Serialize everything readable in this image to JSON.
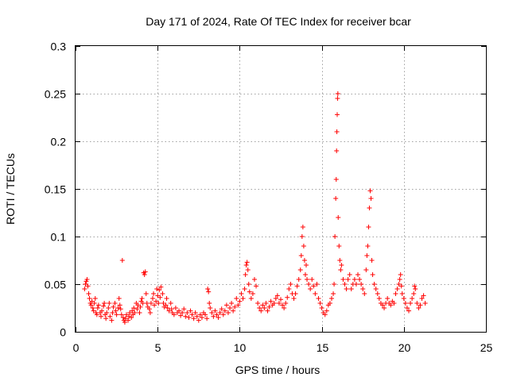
{
  "chart_data": {
    "type": "scatter",
    "title": "Day 171 of 2024, Rate Of TEC Index for receiver bcar",
    "xlabel": "GPS time / hours",
    "ylabel": "ROTI / TECUs",
    "xlim": [
      0,
      25
    ],
    "ylim": [
      0,
      0.3
    ],
    "xticks": [
      0,
      5,
      10,
      15,
      20,
      25
    ],
    "yticks": [
      0,
      0.05,
      0.1,
      0.15,
      0.2,
      0.25,
      0.3
    ],
    "xtick_labels": [
      "0",
      "5",
      "10",
      "15",
      "20",
      "25"
    ],
    "ytick_labels": [
      "0",
      "0.05",
      "0.1",
      "0.15",
      "0.2",
      "0.25",
      "0.3"
    ],
    "grid": true,
    "marker": "+",
    "series": [
      {
        "name": "ROTI",
        "color": "#ff0000",
        "points": [
          [
            0.55,
            0.045
          ],
          [
            0.6,
            0.05
          ],
          [
            0.65,
            0.053
          ],
          [
            0.7,
            0.055
          ],
          [
            0.75,
            0.048
          ],
          [
            0.8,
            0.04
          ],
          [
            0.85,
            0.035
          ],
          [
            0.9,
            0.03
          ],
          [
            0.95,
            0.028
          ],
          [
            1.0,
            0.032
          ],
          [
            1.05,
            0.025
          ],
          [
            1.1,
            0.022
          ],
          [
            1.15,
            0.03
          ],
          [
            1.2,
            0.035
          ],
          [
            1.25,
            0.02
          ],
          [
            1.3,
            0.018
          ],
          [
            1.35,
            0.025
          ],
          [
            1.4,
            0.028
          ],
          [
            1.5,
            0.02
          ],
          [
            1.55,
            0.016
          ],
          [
            1.6,
            0.022
          ],
          [
            1.7,
            0.027
          ],
          [
            1.75,
            0.03
          ],
          [
            1.8,
            0.018
          ],
          [
            1.85,
            0.014
          ],
          [
            1.9,
            0.02
          ],
          [
            2.0,
            0.025
          ],
          [
            2.05,
            0.03
          ],
          [
            2.1,
            0.016
          ],
          [
            2.2,
            0.012
          ],
          [
            2.25,
            0.02
          ],
          [
            2.3,
            0.026
          ],
          [
            2.4,
            0.03
          ],
          [
            2.45,
            0.022
          ],
          [
            2.5,
            0.018
          ],
          [
            2.6,
            0.025
          ],
          [
            2.65,
            0.035
          ],
          [
            2.7,
            0.028
          ],
          [
            2.75,
            0.024
          ],
          [
            2.8,
            0.018
          ],
          [
            2.85,
            0.075
          ],
          [
            2.9,
            0.015
          ],
          [
            2.95,
            0.012
          ],
          [
            3.0,
            0.01
          ],
          [
            3.05,
            0.014
          ],
          [
            3.1,
            0.018
          ],
          [
            3.2,
            0.012
          ],
          [
            3.25,
            0.016
          ],
          [
            3.3,
            0.02
          ],
          [
            3.4,
            0.015
          ],
          [
            3.45,
            0.022
          ],
          [
            3.5,
            0.018
          ],
          [
            3.55,
            0.025
          ],
          [
            3.6,
            0.02
          ],
          [
            3.7,
            0.03
          ],
          [
            3.75,
            0.024
          ],
          [
            3.8,
            0.028
          ],
          [
            3.9,
            0.02
          ],
          [
            3.95,
            0.026
          ],
          [
            4.0,
            0.032
          ],
          [
            4.05,
            0.035
          ],
          [
            4.1,
            0.03
          ],
          [
            4.15,
            0.062
          ],
          [
            4.2,
            0.06
          ],
          [
            4.25,
            0.063
          ],
          [
            4.3,
            0.04
          ],
          [
            4.35,
            0.03
          ],
          [
            4.4,
            0.026
          ],
          [
            4.5,
            0.024
          ],
          [
            4.55,
            0.02
          ],
          [
            4.6,
            0.03
          ],
          [
            4.7,
            0.035
          ],
          [
            4.75,
            0.04
          ],
          [
            4.8,
            0.028
          ],
          [
            4.9,
            0.032
          ],
          [
            4.95,
            0.045
          ],
          [
            5.0,
            0.038
          ],
          [
            5.05,
            0.03
          ],
          [
            5.1,
            0.044
          ],
          [
            5.15,
            0.036
          ],
          [
            5.2,
            0.047
          ],
          [
            5.3,
            0.04
          ],
          [
            5.35,
            0.03
          ],
          [
            5.4,
            0.026
          ],
          [
            5.5,
            0.028
          ],
          [
            5.55,
            0.035
          ],
          [
            5.6,
            0.025
          ],
          [
            5.7,
            0.022
          ],
          [
            5.8,
            0.03
          ],
          [
            5.85,
            0.024
          ],
          [
            5.9,
            0.02
          ],
          [
            6.0,
            0.018
          ],
          [
            6.1,
            0.025
          ],
          [
            6.2,
            0.02
          ],
          [
            6.3,
            0.022
          ],
          [
            6.4,
            0.017
          ],
          [
            6.5,
            0.02
          ],
          [
            6.6,
            0.024
          ],
          [
            6.7,
            0.016
          ],
          [
            6.8,
            0.02
          ],
          [
            6.9,
            0.015
          ],
          [
            7.0,
            0.022
          ],
          [
            7.1,
            0.018
          ],
          [
            7.2,
            0.014
          ],
          [
            7.3,
            0.02
          ],
          [
            7.4,
            0.016
          ],
          [
            7.5,
            0.012
          ],
          [
            7.6,
            0.018
          ],
          [
            7.7,
            0.015
          ],
          [
            7.8,
            0.02
          ],
          [
            7.9,
            0.018
          ],
          [
            8.0,
            0.014
          ],
          [
            8.05,
            0.045
          ],
          [
            8.1,
            0.042
          ],
          [
            8.15,
            0.03
          ],
          [
            8.2,
            0.025
          ],
          [
            8.3,
            0.02
          ],
          [
            8.4,
            0.016
          ],
          [
            8.5,
            0.022
          ],
          [
            8.6,
            0.018
          ],
          [
            8.7,
            0.015
          ],
          [
            8.8,
            0.02
          ],
          [
            8.9,
            0.024
          ],
          [
            9.0,
            0.018
          ],
          [
            9.1,
            0.022
          ],
          [
            9.2,
            0.028
          ],
          [
            9.3,
            0.02
          ],
          [
            9.4,
            0.025
          ],
          [
            9.5,
            0.03
          ],
          [
            9.6,
            0.022
          ],
          [
            9.7,
            0.026
          ],
          [
            9.8,
            0.035
          ],
          [
            9.9,
            0.028
          ],
          [
            10.0,
            0.032
          ],
          [
            10.1,
            0.04
          ],
          [
            10.2,
            0.035
          ],
          [
            10.3,
            0.045
          ],
          [
            10.35,
            0.06
          ],
          [
            10.4,
            0.07
          ],
          [
            10.45,
            0.073
          ],
          [
            10.5,
            0.065
          ],
          [
            10.55,
            0.05
          ],
          [
            10.6,
            0.042
          ],
          [
            10.7,
            0.035
          ],
          [
            10.8,
            0.04
          ],
          [
            10.9,
            0.055
          ],
          [
            11.0,
            0.048
          ],
          [
            11.1,
            0.03
          ],
          [
            11.2,
            0.025
          ],
          [
            11.3,
            0.022
          ],
          [
            11.4,
            0.028
          ],
          [
            11.5,
            0.025
          ],
          [
            11.6,
            0.03
          ],
          [
            11.7,
            0.022
          ],
          [
            11.8,
            0.026
          ],
          [
            11.9,
            0.032
          ],
          [
            12.0,
            0.028
          ],
          [
            12.1,
            0.03
          ],
          [
            12.2,
            0.035
          ],
          [
            12.3,
            0.038
          ],
          [
            12.4,
            0.03
          ],
          [
            12.5,
            0.034
          ],
          [
            12.6,
            0.028
          ],
          [
            12.7,
            0.025
          ],
          [
            12.8,
            0.03
          ],
          [
            12.9,
            0.036
          ],
          [
            13.0,
            0.045
          ],
          [
            13.1,
            0.05
          ],
          [
            13.2,
            0.04
          ],
          [
            13.3,
            0.035
          ],
          [
            13.4,
            0.04
          ],
          [
            13.5,
            0.048
          ],
          [
            13.6,
            0.055
          ],
          [
            13.7,
            0.065
          ],
          [
            13.75,
            0.08
          ],
          [
            13.8,
            0.1
          ],
          [
            13.85,
            0.11
          ],
          [
            13.9,
            0.09
          ],
          [
            13.95,
            0.075
          ],
          [
            14.0,
            0.06
          ],
          [
            14.05,
            0.07
          ],
          [
            14.1,
            0.055
          ],
          [
            14.2,
            0.05
          ],
          [
            14.3,
            0.045
          ],
          [
            14.4,
            0.055
          ],
          [
            14.5,
            0.048
          ],
          [
            14.6,
            0.04
          ],
          [
            14.7,
            0.05
          ],
          [
            14.8,
            0.035
          ],
          [
            14.9,
            0.03
          ],
          [
            15.0,
            0.025
          ],
          [
            15.1,
            0.02
          ],
          [
            15.2,
            0.018
          ],
          [
            15.3,
            0.022
          ],
          [
            15.4,
            0.028
          ],
          [
            15.5,
            0.03
          ],
          [
            15.6,
            0.035
          ],
          [
            15.7,
            0.04
          ],
          [
            15.75,
            0.05
          ],
          [
            15.8,
            0.1
          ],
          [
            15.85,
            0.14
          ],
          [
            15.88,
            0.16
          ],
          [
            15.9,
            0.19
          ],
          [
            15.92,
            0.21
          ],
          [
            15.94,
            0.228
          ],
          [
            15.96,
            0.245
          ],
          [
            15.98,
            0.25
          ],
          [
            16.0,
            0.12
          ],
          [
            16.05,
            0.09
          ],
          [
            16.1,
            0.075
          ],
          [
            16.15,
            0.065
          ],
          [
            16.2,
            0.07
          ],
          [
            16.3,
            0.055
          ],
          [
            16.4,
            0.05
          ],
          [
            16.5,
            0.045
          ],
          [
            16.6,
            0.055
          ],
          [
            16.7,
            0.06
          ],
          [
            16.8,
            0.045
          ],
          [
            16.9,
            0.05
          ],
          [
            17.0,
            0.055
          ],
          [
            17.1,
            0.05
          ],
          [
            17.2,
            0.06
          ],
          [
            17.3,
            0.055
          ],
          [
            17.4,
            0.05
          ],
          [
            17.5,
            0.045
          ],
          [
            17.6,
            0.04
          ],
          [
            17.7,
            0.065
          ],
          [
            17.75,
            0.08
          ],
          [
            17.8,
            0.09
          ],
          [
            17.85,
            0.11
          ],
          [
            17.9,
            0.13
          ],
          [
            17.95,
            0.148
          ],
          [
            18.0,
            0.14
          ],
          [
            18.05,
            0.075
          ],
          [
            18.1,
            0.06
          ],
          [
            18.2,
            0.05
          ],
          [
            18.3,
            0.045
          ],
          [
            18.4,
            0.04
          ],
          [
            18.5,
            0.035
          ],
          [
            18.6,
            0.03
          ],
          [
            18.7,
            0.028
          ],
          [
            18.8,
            0.025
          ],
          [
            18.9,
            0.03
          ],
          [
            19.0,
            0.035
          ],
          [
            19.1,
            0.03
          ],
          [
            19.2,
            0.028
          ],
          [
            19.3,
            0.032
          ],
          [
            19.4,
            0.03
          ],
          [
            19.5,
            0.04
          ],
          [
            19.6,
            0.045
          ],
          [
            19.7,
            0.05
          ],
          [
            19.75,
            0.055
          ],
          [
            19.8,
            0.06
          ],
          [
            19.85,
            0.048
          ],
          [
            19.9,
            0.04
          ],
          [
            20.0,
            0.035
          ],
          [
            20.1,
            0.03
          ],
          [
            20.2,
            0.025
          ],
          [
            20.3,
            0.022
          ],
          [
            20.4,
            0.03
          ],
          [
            20.5,
            0.035
          ],
          [
            20.6,
            0.04
          ],
          [
            20.65,
            0.048
          ],
          [
            20.7,
            0.045
          ],
          [
            20.8,
            0.03
          ],
          [
            20.9,
            0.025
          ],
          [
            21.0,
            0.028
          ],
          [
            21.1,
            0.035
          ],
          [
            21.2,
            0.038
          ],
          [
            21.3,
            0.03
          ]
        ]
      }
    ]
  }
}
